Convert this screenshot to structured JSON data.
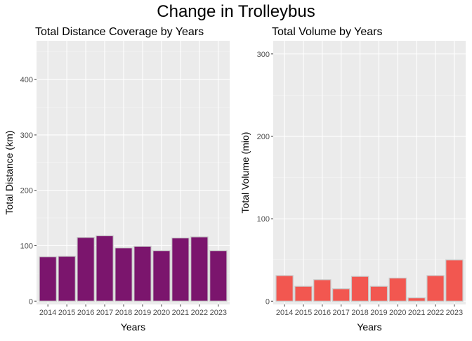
{
  "title": "Change in Trolleybus",
  "chart_data": [
    {
      "type": "bar",
      "title": "Total Distance Coverage by Years",
      "xlabel": "Years",
      "ylabel": "Total Distance (km)",
      "categories": [
        "2014",
        "2015",
        "2016",
        "2017",
        "2018",
        "2019",
        "2020",
        "2021",
        "2022",
        "2023"
      ],
      "values": [
        80,
        81,
        115,
        118,
        96,
        99,
        91,
        114,
        116,
        91
      ],
      "ylim": [
        -6,
        470
      ],
      "yticks": [
        0,
        100,
        200,
        300,
        400
      ],
      "bar_fill": "#7B156D",
      "bar_stroke": "#C8C8C8",
      "panel_bg": "#EBEBEB",
      "grid": true
    },
    {
      "type": "bar",
      "title": "Total Volume by Years",
      "xlabel": "Years",
      "ylabel": "Total Volume (mio)",
      "categories": [
        "2014",
        "2015",
        "2016",
        "2017",
        "2018",
        "2019",
        "2020",
        "2021",
        "2022",
        "2023"
      ],
      "values": [
        31,
        18,
        26,
        15,
        30,
        18,
        28,
        4,
        31,
        50
      ],
      "ylim": [
        -4,
        316
      ],
      "yticks": [
        0,
        100,
        200,
        300
      ],
      "bar_fill": "#F25750",
      "bar_stroke": "#C8C8C8",
      "panel_bg": "#EBEBEB",
      "grid": true
    }
  ]
}
